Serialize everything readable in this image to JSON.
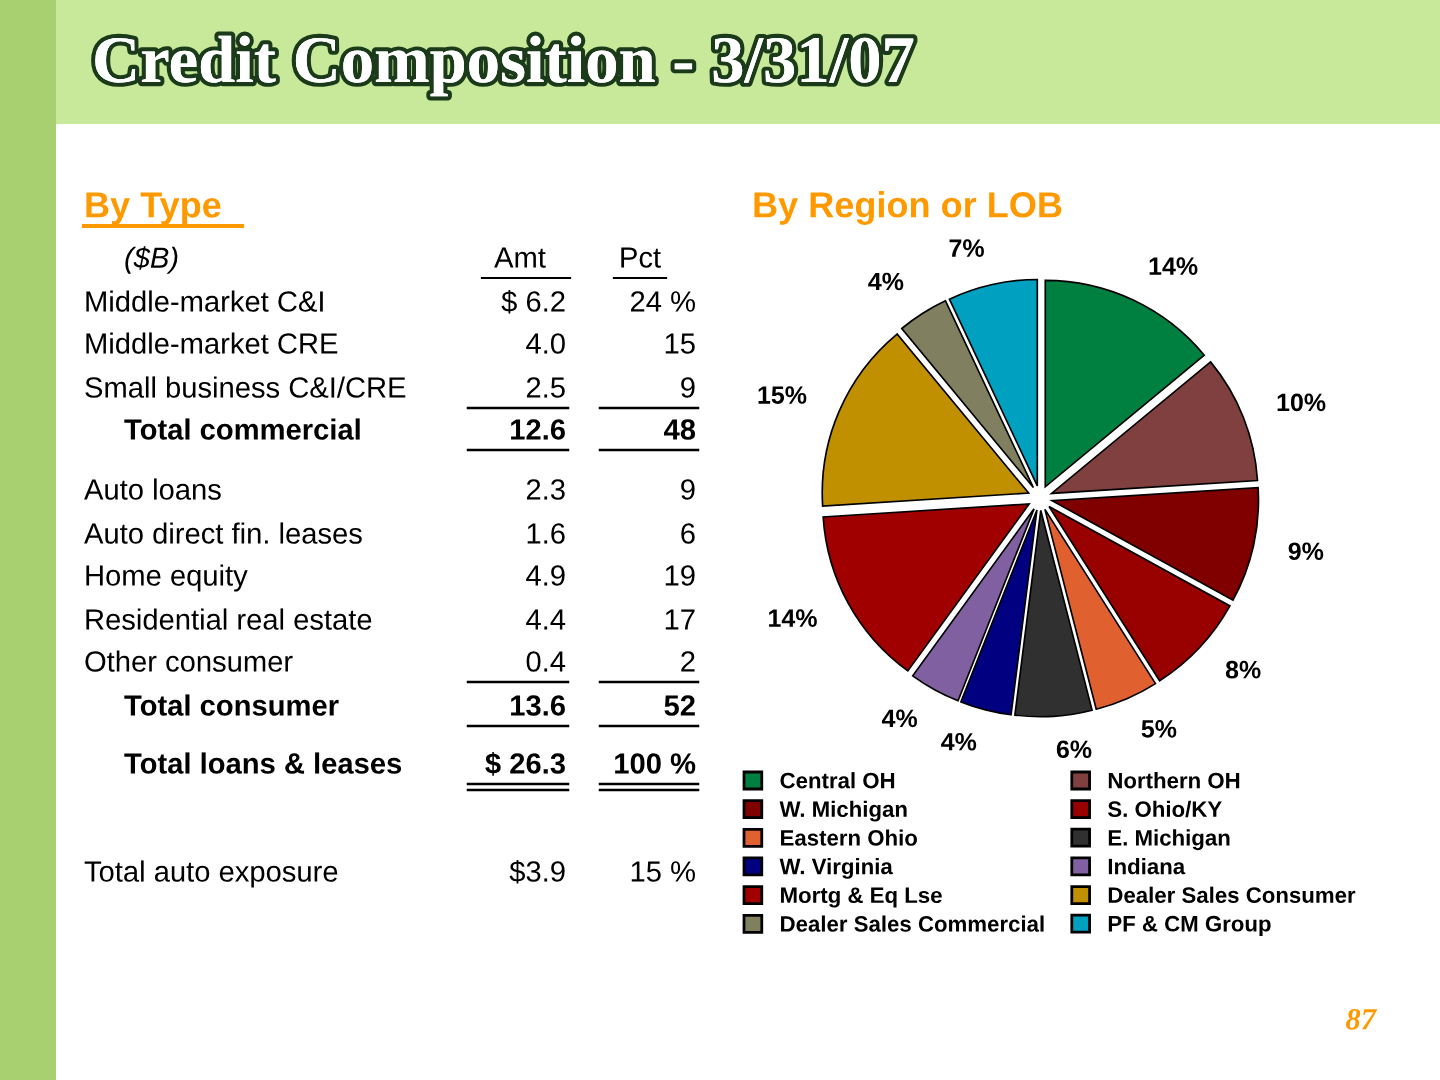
{
  "chart_data": [
    {
      "type": "other",
      "title": "Credit Composition - 3/31/07",
      "subtitle": "By Type",
      "categories": [
        "($B)",
        "Amt",
        "Pct"
      ],
      "y_categories": [
        "Middle-market C&I",
        "Middle-market CRE",
        "Small business C&I/CRE",
        "Total commercial",
        "Auto loans",
        "Auto direct fin. leases",
        "Home equity",
        "Residential real estate",
        "Other consumer",
        "Total consumer",
        "Total loans & leases",
        "Total auto exposure"
      ],
      "cell_labels": [
        [
          "$ 6.2",
          "24 %"
        ],
        [
          "4.0",
          "15"
        ],
        [
          "2.5",
          "9"
        ],
        [
          "12.6",
          "48"
        ],
        [
          "2.3",
          "9"
        ],
        [
          "1.6",
          "6"
        ],
        [
          "4.9",
          "19"
        ],
        [
          "4.4",
          "17"
        ],
        [
          "0.4",
          "2"
        ],
        [
          "13.6",
          "52"
        ],
        [
          "$ 26.3",
          "100 %"
        ],
        [
          "$3.9",
          "15 %"
        ]
      ]
    },
    {
      "type": "pie",
      "title": "By Region or LOB",
      "categories": [
        "Central OH",
        "Northern OH",
        "W. Michigan",
        "S. Ohio/KY",
        "Eastern Ohio",
        "E. Michigan",
        "W. Virginia",
        "Indiana",
        "Mortg & Eq Lse",
        "Dealer Sales Consumer",
        "Dealer Sales Commercial",
        "PF & CM Group"
      ],
      "values": [
        14,
        10,
        9,
        8,
        5,
        6,
        4,
        4,
        14,
        15,
        4,
        7
      ],
      "colors": [
        "#008040",
        "#804040",
        "#800000",
        "#990000",
        "#e06030",
        "#303030",
        "#000080",
        "#8060a0",
        "#a00000",
        "#c09000",
        "#808060",
        "#00a0c0"
      ],
      "value_labels": [
        "14%",
        "10%",
        "9%",
        "8%",
        "5%",
        "6%",
        "4%",
        "4%",
        "14%",
        "15%",
        "4%",
        "7%"
      ],
      "legend": "bottom",
      "annotations": [
        "87"
      ]
    }
  ]
}
